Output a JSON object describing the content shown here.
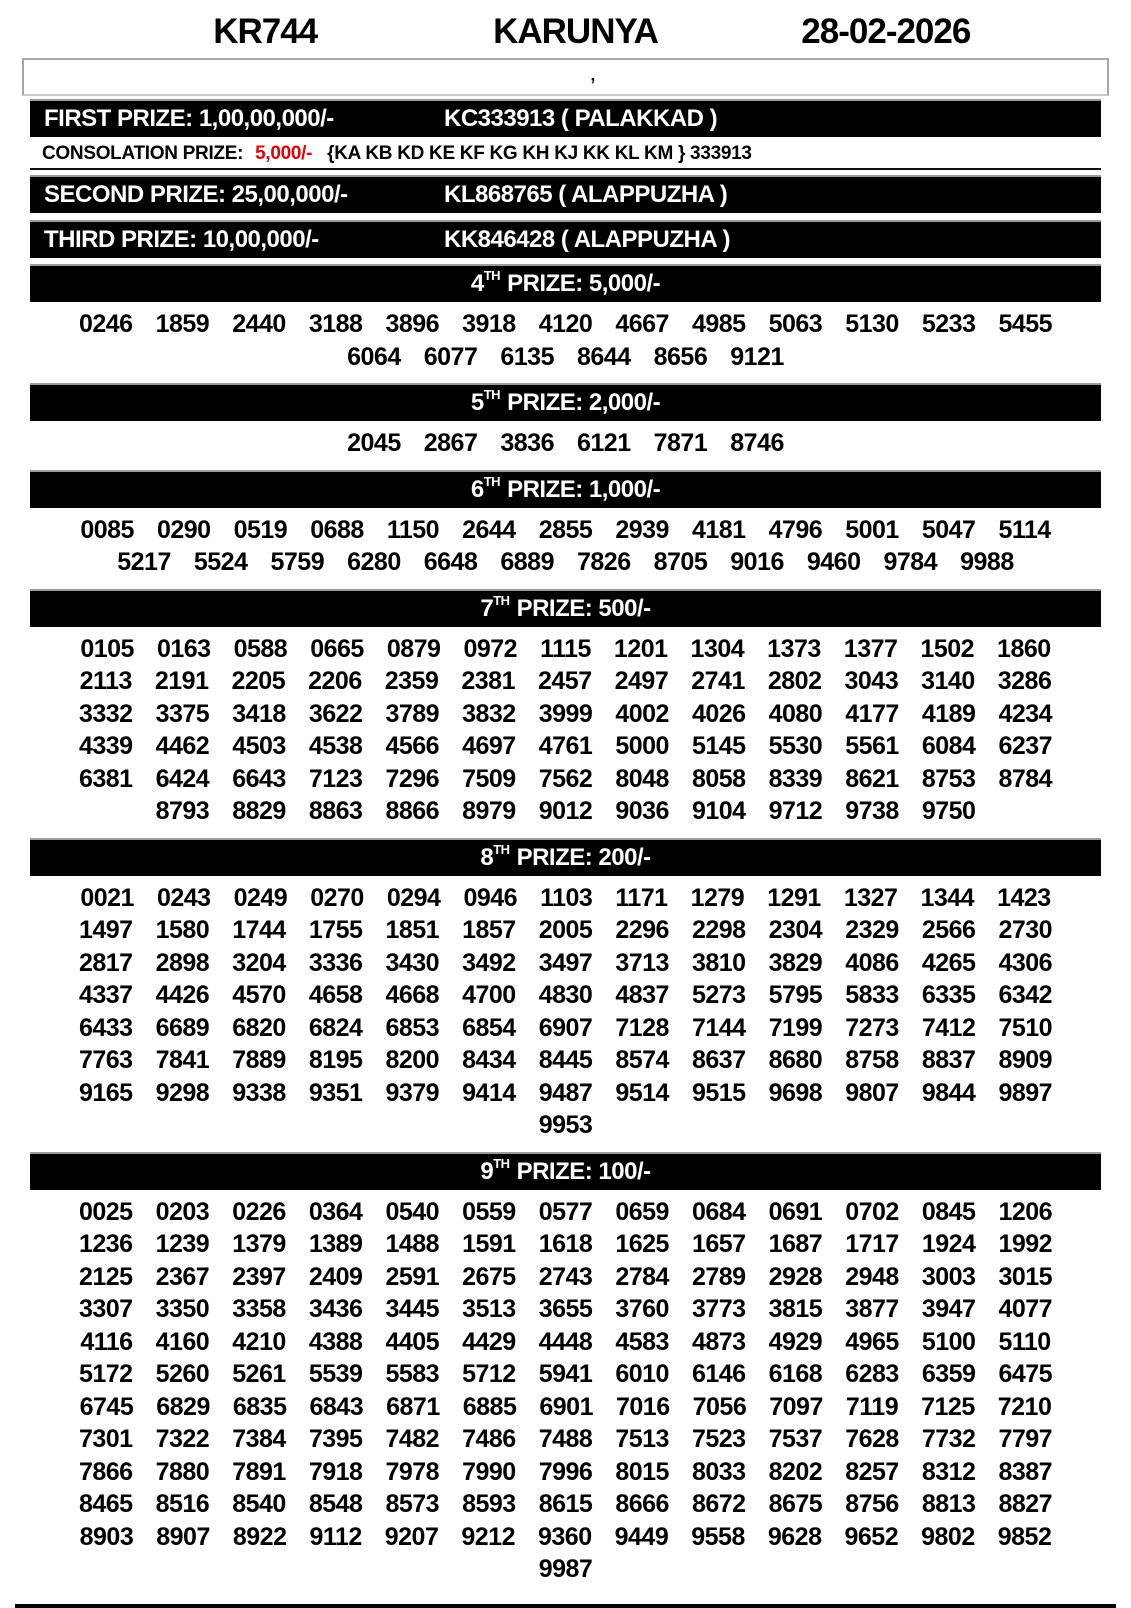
{
  "header": {
    "draw_code": "KR744",
    "lottery_name": "KARUNYA",
    "draw_date": "28-02-2026"
  },
  "stray_mark": "’",
  "top_prizes": [
    {
      "label": "FIRST PRIZE: 1,00,00,000/-",
      "winner": "KC333913 ( PALAKKAD )"
    },
    {
      "label": "SECOND PRIZE: 25,00,000/-",
      "winner": "KL868765 ( ALAPPUZHA )"
    },
    {
      "label": "THIRD PRIZE: 10,00,000/-",
      "winner": "KK846428 ( ALAPPUZHA )"
    }
  ],
  "consolation": {
    "label": "CONSOLATION PRIZE:",
    "amount": "5,000/-",
    "series": "{KA KB KD KE KF KG KH KJ KK KL KM } 333913"
  },
  "tiers": [
    {
      "ord": "4",
      "sup": "TH",
      "rest": "PRIZE: 5,000/-",
      "rows": [
        [
          "0246",
          "1859",
          "2440",
          "3188",
          "3896",
          "3918",
          "4120",
          "4667",
          "4985",
          "5063",
          "5130",
          "5233",
          "5455"
        ],
        [
          "6064",
          "6077",
          "6135",
          "8644",
          "8656",
          "9121"
        ]
      ]
    },
    {
      "ord": "5",
      "sup": "TH",
      "rest": "PRIZE: 2,000/-",
      "rows": [
        [
          "2045",
          "2867",
          "3836",
          "6121",
          "7871",
          "8746"
        ]
      ]
    },
    {
      "ord": "6",
      "sup": "TH",
      "rest": "PRIZE: 1,000/-",
      "rows": [
        [
          "0085",
          "0290",
          "0519",
          "0688",
          "1150",
          "2644",
          "2855",
          "2939",
          "4181",
          "4796",
          "5001",
          "5047",
          "5114"
        ],
        [
          "5217",
          "5524",
          "5759",
          "6280",
          "6648",
          "6889",
          "7826",
          "8705",
          "9016",
          "9460",
          "9784",
          "9988"
        ]
      ]
    },
    {
      "ord": "7",
      "sup": "TH",
      "rest": "PRIZE: 500/-",
      "rows": [
        [
          "0105",
          "0163",
          "0588",
          "0665",
          "0879",
          "0972",
          "1115",
          "1201",
          "1304",
          "1373",
          "1377",
          "1502",
          "1860"
        ],
        [
          "2113",
          "2191",
          "2205",
          "2206",
          "2359",
          "2381",
          "2457",
          "2497",
          "2741",
          "2802",
          "3043",
          "3140",
          "3286"
        ],
        [
          "3332",
          "3375",
          "3418",
          "3622",
          "3789",
          "3832",
          "3999",
          "4002",
          "4026",
          "4080",
          "4177",
          "4189",
          "4234"
        ],
        [
          "4339",
          "4462",
          "4503",
          "4538",
          "4566",
          "4697",
          "4761",
          "5000",
          "5145",
          "5530",
          "5561",
          "6084",
          "6237"
        ],
        [
          "6381",
          "6424",
          "6643",
          "7123",
          "7296",
          "7509",
          "7562",
          "8048",
          "8058",
          "8339",
          "8621",
          "8753",
          "8784"
        ],
        [
          "8793",
          "8829",
          "8863",
          "8866",
          "8979",
          "9012",
          "9036",
          "9104",
          "9712",
          "9738",
          "9750"
        ]
      ]
    },
    {
      "ord": "8",
      "sup": "TH",
      "rest": "PRIZE: 200/-",
      "rows": [
        [
          "0021",
          "0243",
          "0249",
          "0270",
          "0294",
          "0946",
          "1103",
          "1171",
          "1279",
          "1291",
          "1327",
          "1344",
          "1423"
        ],
        [
          "1497",
          "1580",
          "1744",
          "1755",
          "1851",
          "1857",
          "2005",
          "2296",
          "2298",
          "2304",
          "2329",
          "2566",
          "2730"
        ],
        [
          "2817",
          "2898",
          "3204",
          "3336",
          "3430",
          "3492",
          "3497",
          "3713",
          "3810",
          "3829",
          "4086",
          "4265",
          "4306"
        ],
        [
          "4337",
          "4426",
          "4570",
          "4658",
          "4668",
          "4700",
          "4830",
          "4837",
          "5273",
          "5795",
          "5833",
          "6335",
          "6342"
        ],
        [
          "6433",
          "6689",
          "6820",
          "6824",
          "6853",
          "6854",
          "6907",
          "7128",
          "7144",
          "7199",
          "7273",
          "7412",
          "7510"
        ],
        [
          "7763",
          "7841",
          "7889",
          "8195",
          "8200",
          "8434",
          "8445",
          "8574",
          "8637",
          "8680",
          "8758",
          "8837",
          "8909"
        ],
        [
          "9165",
          "9298",
          "9338",
          "9351",
          "9379",
          "9414",
          "9487",
          "9514",
          "9515",
          "9698",
          "9807",
          "9844",
          "9897"
        ],
        [
          "9953"
        ]
      ]
    },
    {
      "ord": "9",
      "sup": "TH",
      "rest": "PRIZE: 100/-",
      "rows": [
        [
          "0025",
          "0203",
          "0226",
          "0364",
          "0540",
          "0559",
          "0577",
          "0659",
          "0684",
          "0691",
          "0702",
          "0845",
          "1206"
        ],
        [
          "1236",
          "1239",
          "1379",
          "1389",
          "1488",
          "1591",
          "1618",
          "1625",
          "1657",
          "1687",
          "1717",
          "1924",
          "1992"
        ],
        [
          "2125",
          "2367",
          "2397",
          "2409",
          "2591",
          "2675",
          "2743",
          "2784",
          "2789",
          "2928",
          "2948",
          "3003",
          "3015"
        ],
        [
          "3307",
          "3350",
          "3358",
          "3436",
          "3445",
          "3513",
          "3655",
          "3760",
          "3773",
          "3815",
          "3877",
          "3947",
          "4077"
        ],
        [
          "4116",
          "4160",
          "4210",
          "4388",
          "4405",
          "4429",
          "4448",
          "4583",
          "4873",
          "4929",
          "4965",
          "5100",
          "5110"
        ],
        [
          "5172",
          "5260",
          "5261",
          "5539",
          "5583",
          "5712",
          "5941",
          "6010",
          "6146",
          "6168",
          "6283",
          "6359",
          "6475"
        ],
        [
          "6745",
          "6829",
          "6835",
          "6843",
          "6871",
          "6885",
          "6901",
          "7016",
          "7056",
          "7097",
          "7119",
          "7125",
          "7210"
        ],
        [
          "7301",
          "7322",
          "7384",
          "7395",
          "7482",
          "7486",
          "7488",
          "7513",
          "7523",
          "7537",
          "7628",
          "7732",
          "7797"
        ],
        [
          "7866",
          "7880",
          "7891",
          "7918",
          "7978",
          "7990",
          "7996",
          "8015",
          "8033",
          "8202",
          "8257",
          "8312",
          "8387"
        ],
        [
          "8465",
          "8516",
          "8540",
          "8548",
          "8573",
          "8593",
          "8615",
          "8666",
          "8672",
          "8675",
          "8756",
          "8813",
          "8827"
        ],
        [
          "8903",
          "8907",
          "8922",
          "9112",
          "9207",
          "9212",
          "9360",
          "9449",
          "9558",
          "9628",
          "9652",
          "9802",
          "9852"
        ],
        [
          "9987"
        ]
      ]
    }
  ]
}
